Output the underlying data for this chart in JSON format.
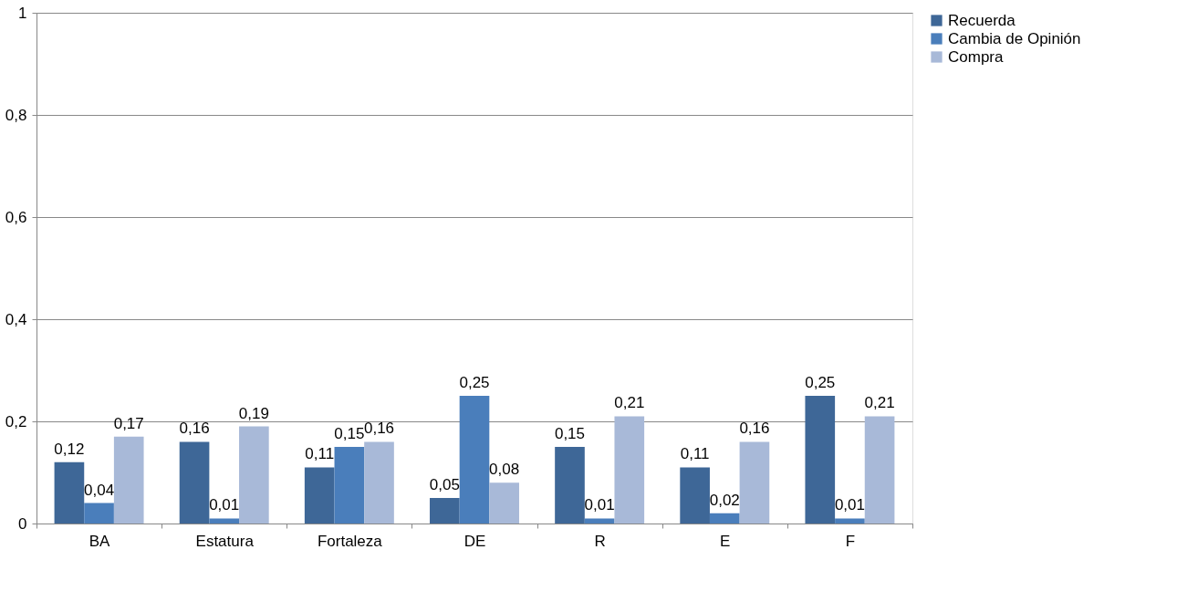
{
  "chart_data": {
    "type": "bar",
    "categories": [
      "BA",
      "Estatura",
      "Fortaleza",
      "DE",
      "R",
      "E",
      "F"
    ],
    "series": [
      {
        "name": "Recuerda",
        "color": "#3e6797",
        "values": [
          0.12,
          0.16,
          0.11,
          0.05,
          0.15,
          0.11,
          0.25
        ],
        "value_labels": [
          "0,12",
          "0,16",
          "0,11",
          "0,05",
          "0,15",
          "0,11",
          "0,25"
        ]
      },
      {
        "name": "Cambia de Opinión",
        "color": "#4a7ebb",
        "values": [
          0.04,
          0.01,
          0.15,
          0.25,
          0.01,
          0.02,
          0.01
        ],
        "value_labels": [
          "0,04",
          "0,01",
          "0,15",
          "0,25",
          "0,01",
          "0,02",
          "0,01"
        ]
      },
      {
        "name": "Compra",
        "color": "#a8b9d8",
        "values": [
          0.17,
          0.19,
          0.16,
          0.08,
          0.21,
          0.16,
          0.21
        ],
        "value_labels": [
          "0,17",
          "0,19",
          "0,16",
          "0,08",
          "0,21",
          "0,16",
          "0,21"
        ]
      }
    ],
    "ylim": [
      0,
      1
    ],
    "yticks": [
      0,
      {
        "value": 0.2,
        "label": "0,2"
      },
      {
        "value": 0.4,
        "label": "0,4"
      },
      {
        "value": 0.6,
        "label": "0,6"
      },
      {
        "value": 0.8,
        "label": "0,8"
      },
      1
    ],
    "grid": "y",
    "legend": "right"
  }
}
